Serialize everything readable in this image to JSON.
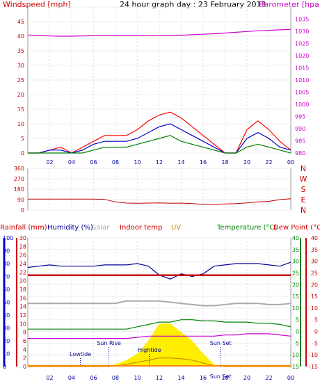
{
  "header": {
    "title": "24 hour graph day : 23 February 2013",
    "left_label": "Windspeed [mph]",
    "right_label": "Barometer [hpa]"
  },
  "colors": {
    "wind_gust": "#ff0000",
    "wind_avg": "#0000c0",
    "wind_low": "#008000",
    "barometer": "#cc00cc",
    "direction": "#c00000",
    "rain_axis": "#cc0000",
    "humidity": "#000099",
    "solar": "#aaaaaa",
    "uv": "#cc8800",
    "temperature": "#008000",
    "dewpoint": "#cc0000",
    "solar_fill": "#ffee00",
    "indoor_temp": "#cc0000"
  },
  "chart_data": [
    {
      "type": "line",
      "title": "24 hour graph day : 23 February 2013",
      "xlabel": "",
      "ylabel": "Windspeed [mph]",
      "ylabel_right": "Barometer [hpa]",
      "x_ticks": [
        "02",
        "04",
        "06",
        "08",
        "10",
        "12",
        "14",
        "16",
        "18",
        "20",
        "22",
        "00"
      ],
      "ylim": [
        0,
        50
      ],
      "y_ticks": [
        0,
        5,
        10,
        15,
        20,
        25,
        30,
        35,
        40,
        45,
        50
      ],
      "ylim_right": [
        980,
        1040
      ],
      "y_ticks_right": [
        980,
        985,
        990,
        995,
        1000,
        1005,
        1010,
        1015,
        1020,
        1025,
        1030,
        1035
      ],
      "x": [
        0,
        1,
        2,
        3,
        4,
        5,
        6,
        7,
        8,
        9,
        10,
        11,
        12,
        13,
        14,
        15,
        16,
        17,
        18,
        19,
        20,
        21,
        22,
        23,
        24
      ],
      "series": [
        {
          "name": "Windspeed",
          "role": "gust",
          "values": [
            0,
            0,
            1,
            2,
            0,
            2,
            4,
            6,
            6,
            6,
            8,
            11,
            13,
            14,
            12,
            9,
            6,
            3,
            0,
            0,
            8,
            11,
            8,
            4,
            1
          ]
        },
        {
          "name": "Windspeed",
          "role": "average",
          "values": [
            0,
            0,
            1,
            1,
            0,
            1,
            3,
            4,
            4,
            4,
            5,
            7,
            9,
            10,
            8,
            6,
            4,
            2,
            0,
            0,
            5,
            7,
            5,
            2,
            1
          ]
        },
        {
          "name": "Windspeed",
          "role": "low",
          "values": [
            0,
            0,
            0,
            0,
            0,
            0,
            1,
            2,
            2,
            2,
            3,
            4,
            5,
            6,
            4,
            3,
            2,
            1,
            0,
            0,
            2,
            3,
            2,
            1,
            0
          ]
        },
        {
          "name": "Barometer [hpa]",
          "axis": "right",
          "values": [
            1028.5,
            1028.3,
            1028.1,
            1028.0,
            1028.0,
            1028.1,
            1028.2,
            1028.3,
            1028.3,
            1028.3,
            1028.3,
            1028.2,
            1028.2,
            1028.3,
            1028.4,
            1028.6,
            1028.8,
            1029.0,
            1029.3,
            1029.6,
            1029.9,
            1030.2,
            1030.4,
            1030.6,
            1030.8
          ]
        }
      ]
    },
    {
      "type": "line",
      "title": "",
      "ylabel_right_ticks": [
        "N",
        "W",
        "S",
        "E",
        "N"
      ],
      "ylim": [
        0,
        360
      ],
      "y_ticks": [
        0,
        90,
        180,
        270,
        360
      ],
      "x_ticks": [
        "02",
        "04",
        "06",
        "08",
        "10",
        "12",
        "14",
        "16",
        "18",
        "20",
        "22",
        "00"
      ],
      "x": [
        0,
        1,
        2,
        3,
        4,
        5,
        6,
        7,
        8,
        9,
        10,
        11,
        12,
        13,
        14,
        15,
        16,
        17,
        18,
        19,
        20,
        21,
        22,
        23,
        24
      ],
      "series": [
        {
          "name": "Wind direction",
          "values": [
            95,
            95,
            95,
            95,
            95,
            95,
            95,
            92,
            70,
            60,
            58,
            60,
            62,
            58,
            60,
            55,
            50,
            50,
            52,
            55,
            62,
            70,
            75,
            90,
            98
          ]
        }
      ]
    },
    {
      "type": "line",
      "title": "",
      "legend_labels": [
        "Rainfall (mm)",
        "Humidity (%)",
        "Solar",
        "Indoor temp",
        "UV",
        "Temperature (°C)",
        "Dew Point (°C)"
      ],
      "x_ticks": [
        "02",
        "04",
        "06",
        "08",
        "10",
        "12",
        "14",
        "16",
        "18",
        "20",
        "22",
        "00"
      ],
      "rain_ylim": [
        0,
        30
      ],
      "rain_ticks": [
        0,
        2,
        4,
        6,
        8,
        10,
        12,
        14,
        16,
        18,
        20,
        22,
        24,
        26,
        28,
        30
      ],
      "humidity_ylim": [
        0,
        100
      ],
      "humidity_ticks": [
        0,
        10,
        20,
        30,
        40,
        50,
        60,
        70,
        80,
        90,
        100
      ],
      "temp_ylim": [
        -15,
        40
      ],
      "temp_ticks": [
        -15,
        -10,
        -5,
        0,
        5,
        10,
        15,
        20,
        25,
        30,
        35,
        40
      ],
      "dew_ticks": [
        -15,
        -10,
        -5,
        0,
        5,
        10,
        15,
        20,
        25,
        30,
        35,
        40
      ],
      "x": [
        0,
        1,
        2,
        3,
        4,
        5,
        6,
        7,
        8,
        9,
        10,
        11,
        12,
        13,
        14,
        15,
        16,
        17,
        18,
        19,
        20,
        21,
        22,
        23,
        24
      ],
      "annotations": [
        {
          "text": "Lowtide",
          "x": 4.8
        },
        {
          "text": "Sun Rise",
          "x": 7.4
        },
        {
          "text": "Hightide",
          "x": 11.1
        },
        {
          "text": "Sun Set",
          "x": 17.6
        },
        {
          "text": "Sun Set",
          "x": 17.6
        }
      ],
      "series": [
        {
          "name": "Humidity (%)",
          "axis": "humidity",
          "values": [
            77,
            78,
            79,
            78,
            78,
            78,
            78,
            79,
            79,
            79,
            80,
            78,
            71,
            68,
            72,
            70,
            72,
            78,
            79,
            80,
            80,
            80,
            79,
            78,
            81
          ]
        },
        {
          "name": "Indoor temp",
          "axis": "temperature",
          "values": [
            24,
            24,
            24,
            24,
            24,
            24,
            24,
            24,
            24,
            24,
            24,
            24,
            24,
            24,
            24,
            24,
            24,
            24,
            24,
            24,
            24,
            24,
            24,
            24,
            24
          ]
        },
        {
          "name": "Solar",
          "axis": "temperature",
          "values": [
            12,
            12,
            12,
            12,
            12,
            12,
            12,
            12,
            12,
            13,
            13,
            13,
            13,
            12.5,
            12,
            11.5,
            11,
            11,
            11.5,
            12,
            12,
            12,
            11.5,
            11.5,
            12
          ]
        },
        {
          "name": "Temperature (°C)",
          "axis": "temperature",
          "values": [
            1,
            1,
            1,
            1,
            1,
            1,
            1,
            1,
            1,
            1,
            2,
            3,
            4,
            4,
            5,
            5,
            4.5,
            4.5,
            4,
            4,
            4,
            3.5,
            3.5,
            3,
            2
          ]
        },
        {
          "name": "Dew Point (°C)",
          "axis": "temperature",
          "values": [
            -3,
            -3,
            -3,
            -3,
            -3,
            -3,
            -3,
            -3,
            -3,
            -3,
            -2.5,
            -2,
            -2,
            -2,
            -2,
            -2,
            -2,
            -2,
            -1.5,
            -1.5,
            -1,
            -1,
            -1,
            -1.5,
            -2
          ]
        },
        {
          "name": "Solar",
          "role": "fill",
          "axis": "rain",
          "values": [
            0,
            0,
            0,
            0,
            0,
            0,
            0,
            0,
            0.5,
            1.5,
            3,
            6,
            10,
            10,
            8,
            6,
            3,
            0.5,
            0,
            0,
            0,
            0,
            0,
            0,
            0
          ]
        },
        {
          "name": "UV",
          "axis": "rain",
          "values": [
            0,
            0,
            0,
            0,
            0,
            0,
            0,
            0,
            0.1,
            0.5,
            1,
            1.5,
            2,
            2,
            1.8,
            1.5,
            0.8,
            0.2,
            0,
            0,
            0,
            0,
            0,
            0,
            0
          ]
        }
      ]
    }
  ]
}
